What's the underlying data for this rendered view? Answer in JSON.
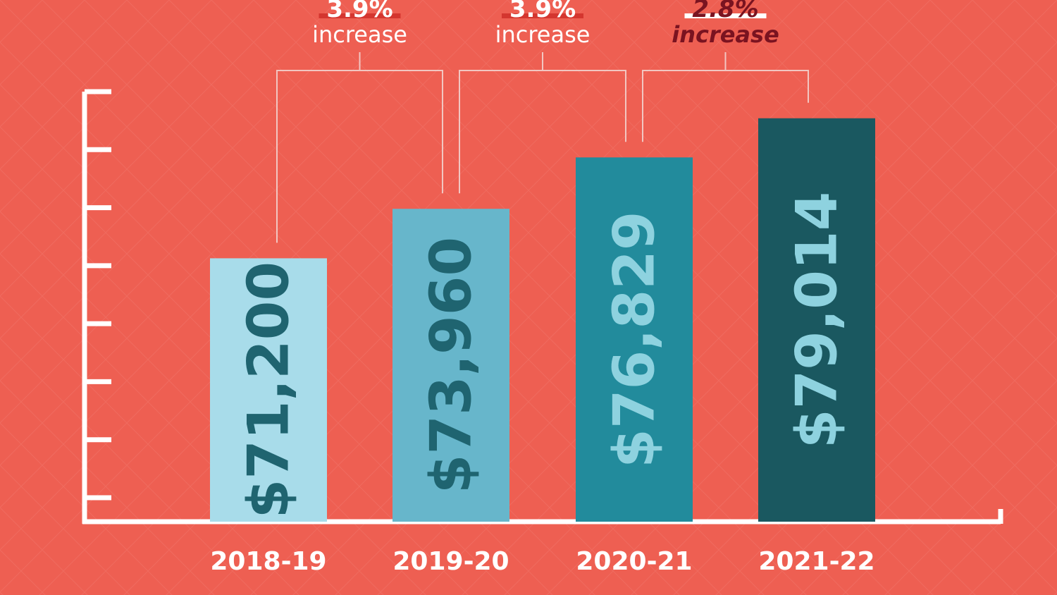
{
  "chart_data": {
    "type": "bar",
    "categories": [
      "2018-19",
      "2019-20",
      "2020-21",
      "2021-22"
    ],
    "values": [
      71200,
      73960,
      76829,
      79014
    ],
    "value_labels": [
      "$71,200",
      "$73,960",
      "$76,829",
      "$79,014"
    ],
    "ylim": [
      56500,
      80500
    ],
    "grid": false,
    "bar_colors": [
      "#a8dcea",
      "#67b6cb",
      "#228b9c",
      "#1a5860"
    ],
    "label_colors": [
      "#1f6470",
      "#1f6470",
      "#8ed2df",
      "#8ed2df"
    ],
    "annotations": [
      {
        "from": "2018-19",
        "to": "2019-20",
        "percent": "3.9%",
        "text": "increase",
        "highlight": false
      },
      {
        "from": "2019-20",
        "to": "2020-21",
        "percent": "3.9%",
        "text": "increase",
        "highlight": false
      },
      {
        "from": "2020-21",
        "to": "2021-22",
        "percent": "2.8%",
        "text": "increase",
        "highlight": true
      }
    ]
  },
  "colors": {
    "background": "#ee5f52",
    "axis": "#ffffff",
    "bracket": "#f2c6c1",
    "annotation_text": "#ffffff",
    "highlight_text": "#7a1320",
    "highlight_underline": "#ffffff",
    "normal_underline": "#d4362f"
  }
}
